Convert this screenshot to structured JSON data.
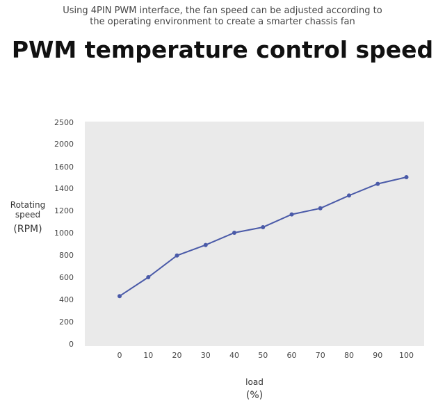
{
  "header": {
    "subtitle_line1": "Using 4PIN PWM interface, the fan speed can be adjusted according to",
    "subtitle_line2": "the operating environment to create a smarter chassis fan",
    "title": "PWM temperature control speed"
  },
  "chart_data": {
    "type": "line",
    "title": "PWM temperature control speed",
    "ylabel_line1": "Rotating",
    "ylabel_line2": "speed",
    "ylabel_line3": "(RPM)",
    "xlabel_line1": "load",
    "xlabel_line2": "(%)",
    "x": [
      0,
      10,
      20,
      30,
      40,
      50,
      60,
      70,
      80,
      90,
      100
    ],
    "series": [
      {
        "values": [
          430,
          600,
          795,
          890,
          1000,
          1050,
          1165,
          1220,
          1335,
          1440,
          1500
        ]
      }
    ],
    "ylim": [
      0,
      2500
    ],
    "yticks": [
      "0",
      "200",
      "400",
      "600",
      "800",
      "1000",
      "1200",
      "1400",
      "1600",
      "2000",
      "2500"
    ],
    "xticks": [
      "0",
      "10",
      "20",
      "30",
      "40",
      "50",
      "60",
      "70",
      "80",
      "90",
      "100"
    ],
    "grid": false,
    "legend": "none",
    "colors": {
      "line": "#4a5aa8",
      "plot_bg": "#eaeaea"
    }
  }
}
